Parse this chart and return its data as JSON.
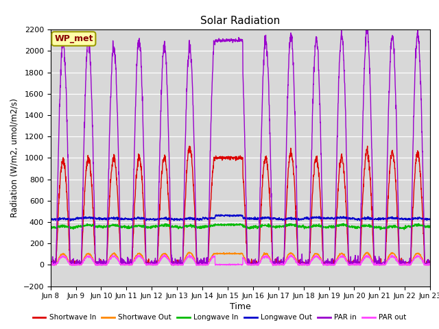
{
  "title": "Solar Radiation",
  "ylabel": "Radiation (W/m2, umol/m2/s)",
  "xlabel": "Time",
  "ylim": [
    -200,
    2200
  ],
  "bg_color": "#d8d8d8",
  "annotation_text": "WP_met",
  "annotation_box_color": "#ffffaa",
  "annotation_box_edge": "#999900",
  "x_tick_labels": [
    "Jun 8",
    "Jun 9",
    "Jun 10",
    "Jun 11",
    "Jun 12",
    "Jun 13",
    "Jun 14",
    "Jun 15",
    "Jun 16",
    "Jun 17",
    "Jun 18",
    "Jun 19",
    "Jun 20",
    "Jun 21",
    "Jun 22",
    "Jun 23"
  ],
  "n_days": 15,
  "series": {
    "shortwave_in": {
      "color": "#dd0000",
      "label": "Shortwave In",
      "lw": 1.0
    },
    "shortwave_out": {
      "color": "#ff8800",
      "label": "Shortwave Out",
      "lw": 1.0
    },
    "longwave_in": {
      "color": "#00bb00",
      "label": "Longwave In",
      "lw": 1.0
    },
    "longwave_out": {
      "color": "#0000cc",
      "label": "Longwave Out",
      "lw": 1.0
    },
    "par_in": {
      "color": "#9900cc",
      "label": "PAR in",
      "lw": 1.0
    },
    "par_out": {
      "color": "#ff44ff",
      "label": "PAR out",
      "lw": 1.0
    }
  },
  "yticks": [
    -200,
    0,
    200,
    400,
    600,
    800,
    1000,
    1200,
    1400,
    1600,
    1800,
    2000,
    2200
  ]
}
